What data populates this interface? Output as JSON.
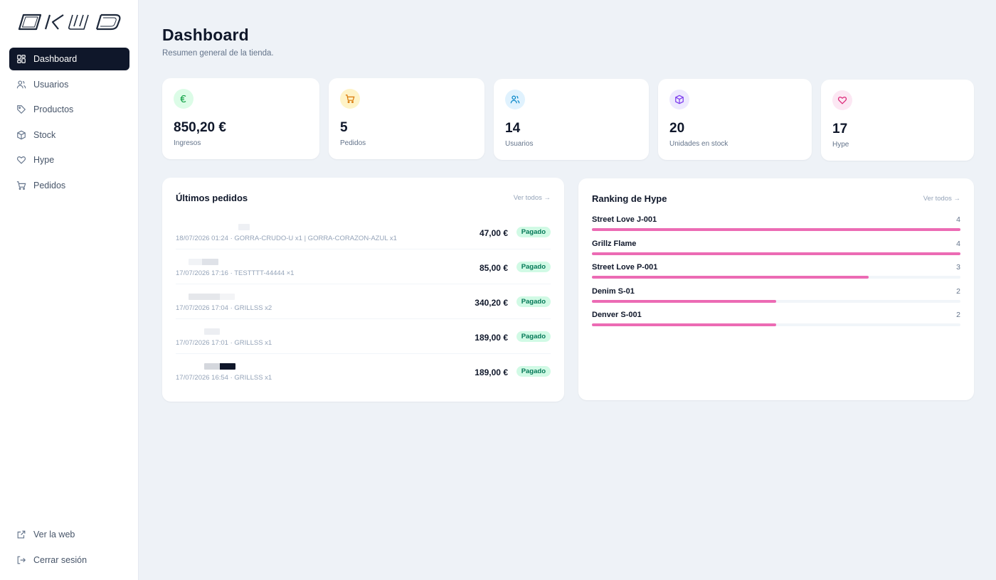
{
  "brand": {
    "logo_text": "OKUD"
  },
  "sidebar": {
    "items": [
      {
        "label": "Dashboard",
        "icon": "dashboard-icon",
        "active": true
      },
      {
        "label": "Usuarios",
        "icon": "users-icon",
        "active": false
      },
      {
        "label": "Productos",
        "icon": "tag-icon",
        "active": false
      },
      {
        "label": "Stock",
        "icon": "box-icon",
        "active": false
      },
      {
        "label": "Hype",
        "icon": "heart-icon",
        "active": false
      },
      {
        "label": "Pedidos",
        "icon": "cart-icon",
        "active": false
      }
    ],
    "bottom": [
      {
        "label": "Ver la web",
        "icon": "external-link-icon"
      },
      {
        "label": "Cerrar sesión",
        "icon": "logout-icon"
      }
    ]
  },
  "header": {
    "title": "Dashboard",
    "subtitle": "Resumen general de la tienda."
  },
  "stats": [
    {
      "value": "850,20 €",
      "label": "Ingresos",
      "icon": "euro-icon",
      "color": "#16a34a",
      "bg": "#dcfce7"
    },
    {
      "value": "5",
      "label": "Pedidos",
      "icon": "cart-icon",
      "color": "#d97706",
      "bg": "#fef3c7"
    },
    {
      "value": "14",
      "label": "Usuarios",
      "icon": "users-icon",
      "color": "#0284c7",
      "bg": "#e0f2fe"
    },
    {
      "value": "20",
      "label": "Unidades en stock",
      "icon": "box-icon",
      "color": "#7c3aed",
      "bg": "#ede9fe"
    },
    {
      "value": "17",
      "label": "Hype",
      "icon": "heart-icon",
      "color": "#db2777",
      "bg": "#fce7f3"
    }
  ],
  "orders_panel": {
    "title": "Últimos pedidos",
    "link": "Ver todos →",
    "orders": [
      {
        "meta": "18/07/2026 01:24 · GORRA-CRUDO-U x1 | GORRA-CORAZON-AZUL x1",
        "amount": "47,00 €",
        "status": "Pagado"
      },
      {
        "meta": "17/07/2026 17:16 · TESTTTT-44444 ×1",
        "amount": "85,00 €",
        "status": "Pagado"
      },
      {
        "meta": "17/07/2026 17:04 · GRILLSS x2",
        "amount": "340,20 €",
        "status": "Pagado"
      },
      {
        "meta": "17/07/2026 17:01 · GRILLSS x1",
        "amount": "189,00 €",
        "status": "Pagado"
      },
      {
        "meta": "17/07/2026 16:54 · GRILLSS x1",
        "amount": "189,00 €",
        "status": "Pagado"
      }
    ]
  },
  "hype_panel": {
    "title": "Ranking de Hype",
    "link": "Ver todos →",
    "max": 4,
    "items": [
      {
        "name": "Street Love J-001",
        "count": "4",
        "value": 4
      },
      {
        "name": "Grillz Flame",
        "count": "4",
        "value": 4
      },
      {
        "name": "Street Love P-001",
        "count": "3",
        "value": 3
      },
      {
        "name": "Denim S-01",
        "count": "2",
        "value": 2
      },
      {
        "name": "Denver S-001",
        "count": "2",
        "value": 2
      }
    ]
  }
}
